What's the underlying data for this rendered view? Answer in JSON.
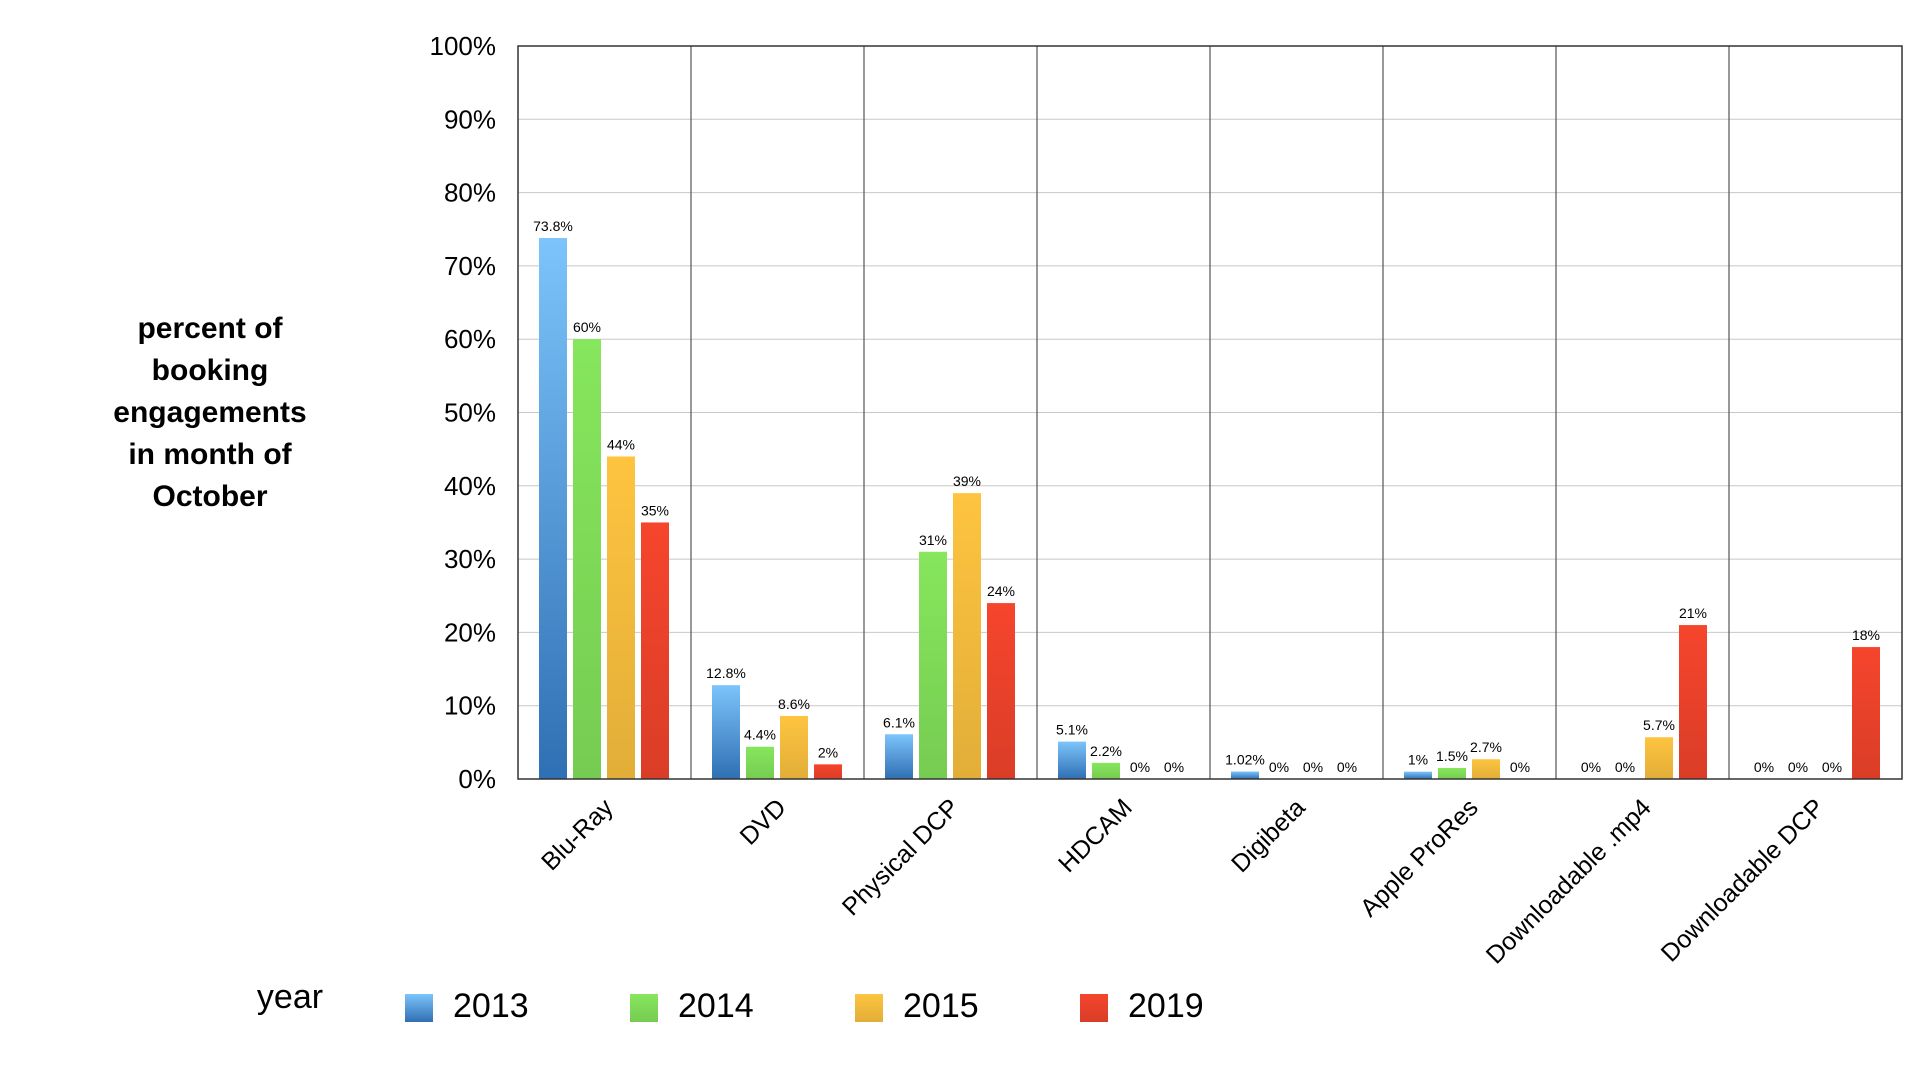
{
  "chart_data": {
    "type": "bar",
    "title": "",
    "xlabel": "",
    "ylabel": "percent of booking engagements in month of October",
    "ylabel_lines": [
      "percent of",
      "booking",
      "engagements",
      "in month of",
      "October"
    ],
    "ylim": [
      0,
      100
    ],
    "yticks": [
      0,
      10,
      20,
      30,
      40,
      50,
      60,
      70,
      80,
      90,
      100
    ],
    "ytick_labels": [
      "0%",
      "10%",
      "20%",
      "30%",
      "40%",
      "50%",
      "60%",
      "70%",
      "80%",
      "90%",
      "100%"
    ],
    "grid": true,
    "legend_title": "year",
    "legend_position": "bottom",
    "categories": [
      "Blu-Ray",
      "DVD",
      "Physical DCP",
      "HDCAM",
      "Digibeta",
      "Apple ProRes",
      "Downloadable .mp4",
      "Downloadable DCP"
    ],
    "series": [
      {
        "name": "2013",
        "color": "#4a9fe6",
        "values": [
          73.8,
          12.8,
          6.1,
          5.1,
          1.02,
          1,
          0,
          0
        ],
        "labels": [
          "73.8%",
          "12.8%",
          "6.1%",
          "5.1%",
          "1.02%",
          "1%",
          "0%",
          "0%"
        ]
      },
      {
        "name": "2014",
        "color": "#7ed957",
        "values": [
          60,
          4.4,
          31,
          2.2,
          0,
          1.5,
          0,
          0
        ],
        "labels": [
          "60%",
          "4.4%",
          "31%",
          "2.2%",
          "0%",
          "1.5%",
          "0%",
          "0%"
        ]
      },
      {
        "name": "2015",
        "color": "#f0b93c",
        "values": [
          44,
          8.6,
          39,
          0,
          0,
          2.7,
          5.7,
          0
        ],
        "labels": [
          "44%",
          "8.6%",
          "39%",
          "0%",
          "0%",
          "2.7%",
          "5.7%",
          "0%"
        ]
      },
      {
        "name": "2019",
        "color": "#e8412a",
        "values": [
          35,
          2,
          24,
          0,
          0,
          0,
          21,
          18
        ],
        "labels": [
          "35%",
          "2%",
          "24%",
          "0%",
          "0%",
          "0%",
          "21%",
          "18%"
        ]
      }
    ]
  }
}
